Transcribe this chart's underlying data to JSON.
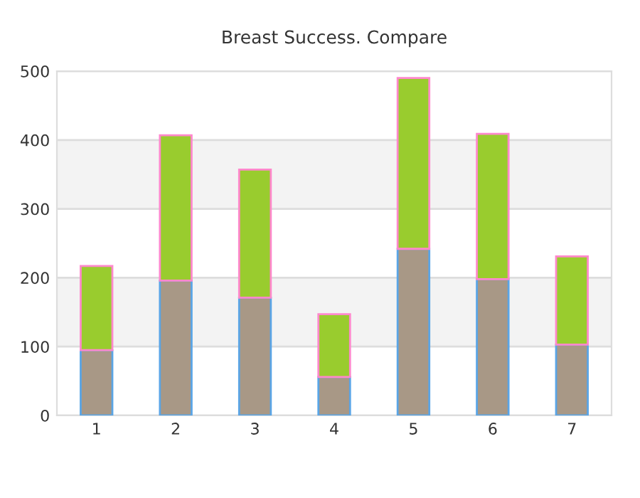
{
  "chart_data": {
    "type": "bar",
    "title": "Breast Success. Compare",
    "categories": [
      "1",
      "2",
      "3",
      "4",
      "5",
      "6",
      "7"
    ],
    "stacked": true,
    "series": [
      {
        "color": "#a89886",
        "values": [
          95,
          196,
          171,
          56,
          242,
          198,
          103
        ]
      },
      {
        "color": "#99cc2e",
        "values": [
          122,
          211,
          186,
          91,
          248,
          211,
          128
        ]
      }
    ],
    "ylim": [
      0,
      500
    ],
    "yticks": [
      0,
      100,
      200,
      300,
      400,
      500
    ],
    "grid": "y",
    "legend": false
  }
}
